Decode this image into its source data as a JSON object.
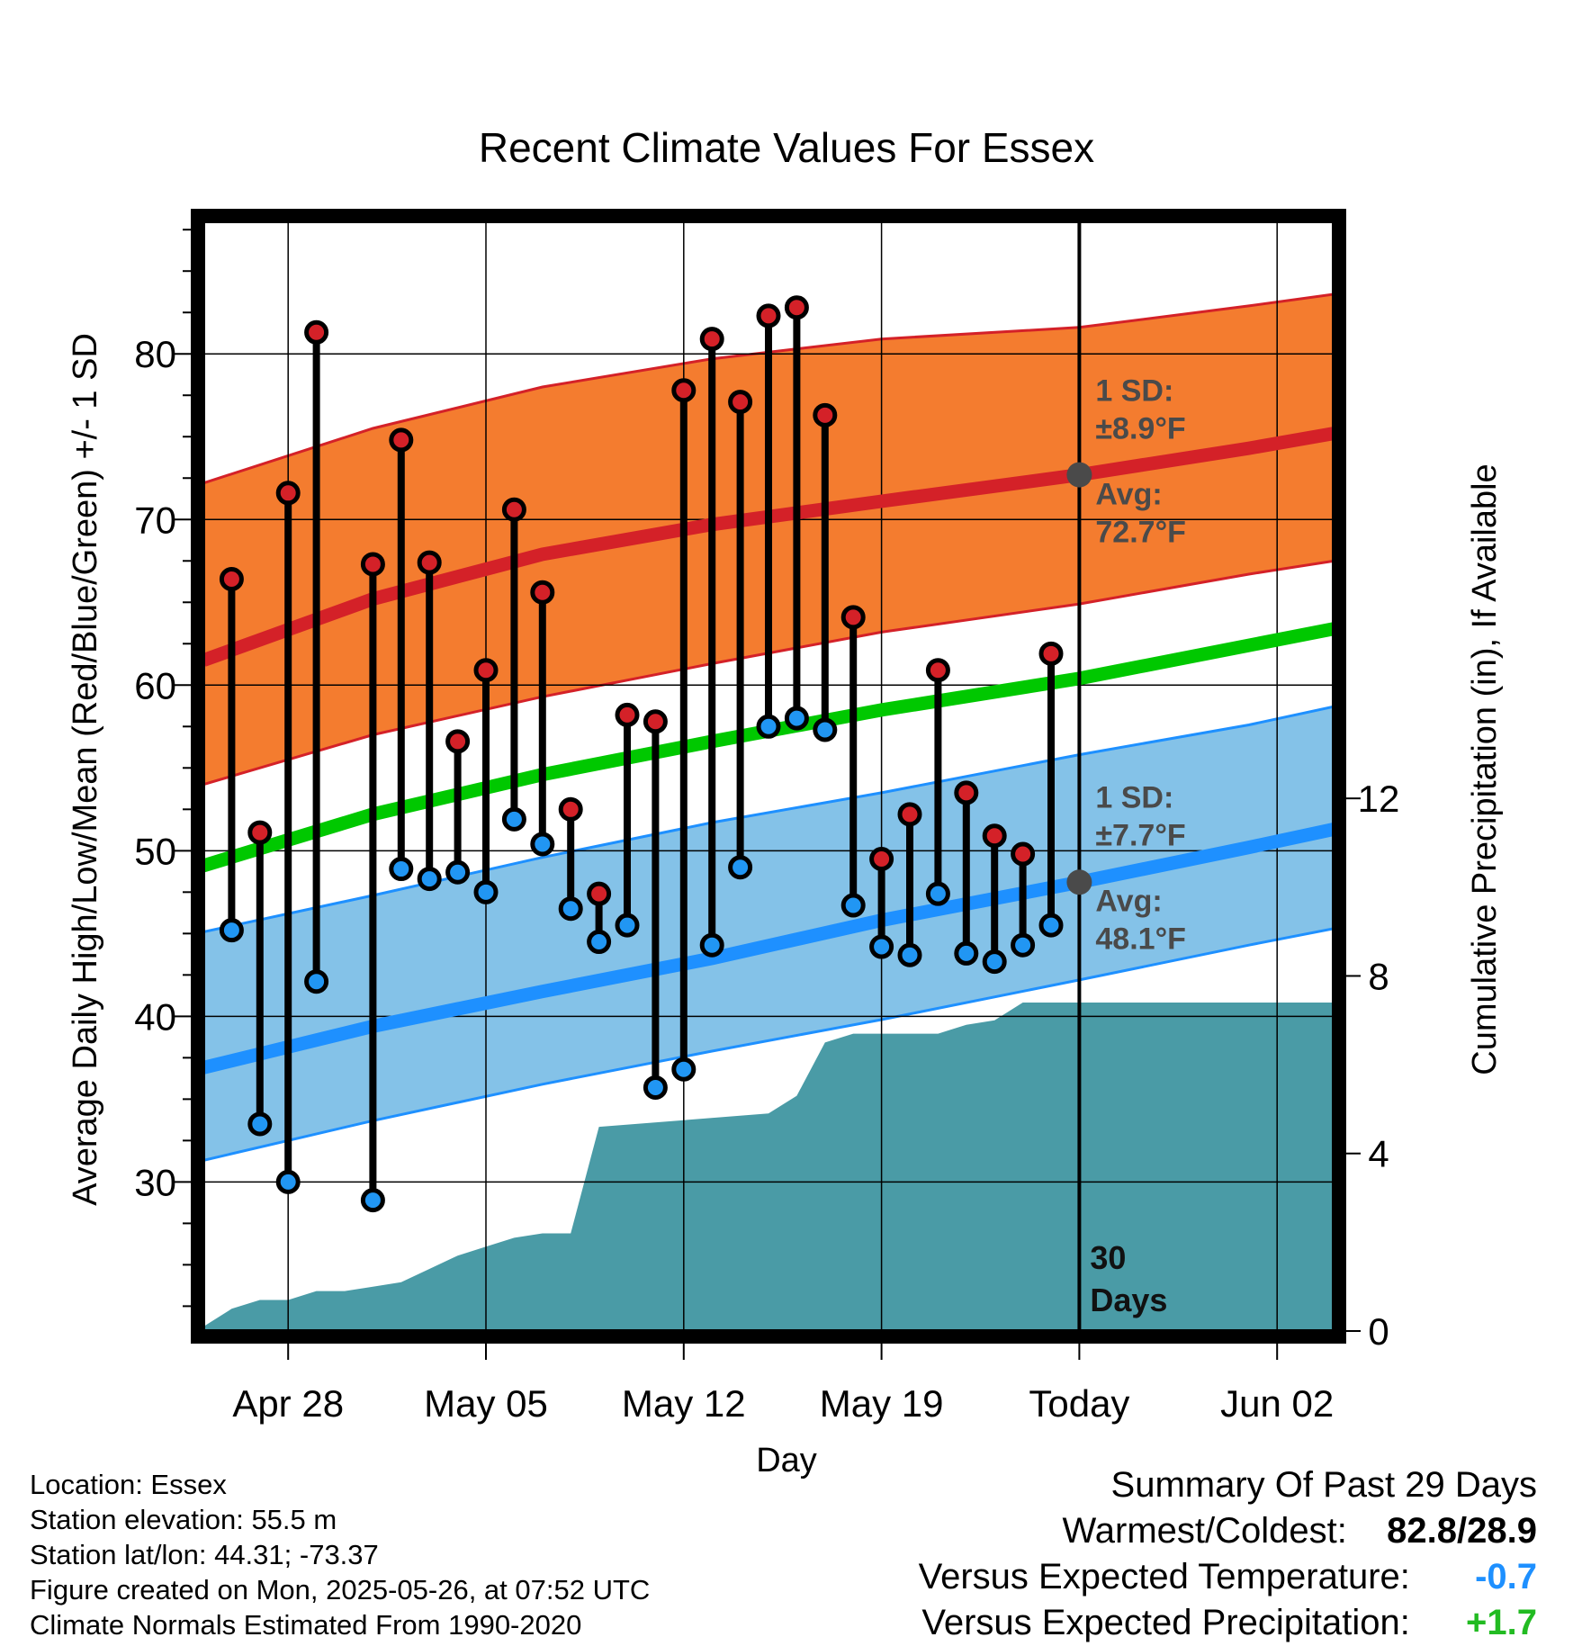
{
  "colors": {
    "high_band": "#f47c2f",
    "high_line": "#d42128",
    "low_band": "#84c2e8",
    "low_line": "#1e90ff",
    "mean_line": "#00c800",
    "precip_fill": "#4a9ba6",
    "high_marker": "#d42128",
    "low_marker": "#2196f3",
    "today_marker": "#4a4a4a",
    "temp_departure": "#1e90ff",
    "precip_departure": "#22bb22"
  },
  "chart_data": {
    "type": "line",
    "title": "Recent Climate Values For Essex",
    "xlabel": "Day",
    "ylabel": "Average Daily High/Low/Mean (Red/Blue/Green) +/- 1 SD",
    "y2label": "Cumulative Precipitation (in), If Available",
    "ylim": [
      21,
      88
    ],
    "y2lim": [
      0,
      25
    ],
    "xlim": [
      "2025-04-25",
      "2025-06-04"
    ],
    "y_ticks": [
      30,
      40,
      50,
      60,
      70,
      80
    ],
    "y_minor_step": 2.5,
    "y2_ticks": [
      0,
      4,
      8,
      12
    ],
    "x_ticks": [
      {
        "date": "2025-04-28",
        "label": "Apr 28"
      },
      {
        "date": "2025-05-05",
        "label": "May 05"
      },
      {
        "date": "2025-05-12",
        "label": "May 12"
      },
      {
        "date": "2025-05-19",
        "label": "May 19"
      },
      {
        "date": "2025-05-26",
        "label": "Today"
      },
      {
        "date": "2025-06-02",
        "label": "Jun 02"
      }
    ],
    "grid": true,
    "today": "2025-05-26",
    "window_label": "30 Days",
    "normals": {
      "x": [
        "2025-04-25",
        "2025-05-01",
        "2025-05-07",
        "2025-05-13",
        "2025-05-19",
        "2025-05-26",
        "2025-06-01",
        "2025-06-04"
      ],
      "high_mean": [
        61.5,
        65.2,
        67.9,
        69.7,
        71.1,
        72.7,
        74.3,
        75.2
      ],
      "high_sd_upper": [
        72.2,
        75.5,
        78.0,
        79.7,
        80.9,
        81.6,
        82.9,
        83.6
      ],
      "high_sd_lower": [
        54.0,
        57.0,
        59.3,
        61.3,
        63.2,
        64.9,
        66.7,
        67.5
      ],
      "low_mean": [
        36.9,
        39.4,
        41.5,
        43.5,
        45.8,
        48.1,
        50.2,
        51.3
      ],
      "low_sd_upper": [
        45.1,
        47.3,
        49.6,
        51.7,
        53.5,
        55.8,
        57.6,
        58.7
      ],
      "low_sd_lower": [
        31.3,
        33.7,
        35.9,
        37.9,
        39.8,
        42.2,
        44.3,
        45.3
      ],
      "mean": [
        49.1,
        52.2,
        54.6,
        56.6,
        58.5,
        60.4,
        62.4,
        63.4
      ]
    },
    "daily": [
      {
        "date": "2025-04-26",
        "high": 66.4,
        "low": 45.2
      },
      {
        "date": "2025-04-27",
        "high": 51.1,
        "low": 33.5
      },
      {
        "date": "2025-04-28",
        "high": 71.6,
        "low": 30.0
      },
      {
        "date": "2025-04-29",
        "high": 81.3,
        "low": 42.1
      },
      {
        "date": "2025-05-01",
        "high": 67.3,
        "low": 28.9
      },
      {
        "date": "2025-05-02",
        "high": 74.8,
        "low": 48.9
      },
      {
        "date": "2025-05-03",
        "high": 67.4,
        "low": 48.3
      },
      {
        "date": "2025-05-04",
        "high": 56.6,
        "low": 48.7
      },
      {
        "date": "2025-05-05",
        "high": 60.9,
        "low": 47.5
      },
      {
        "date": "2025-05-06",
        "high": 70.6,
        "low": 51.9
      },
      {
        "date": "2025-05-07",
        "high": 65.6,
        "low": 50.4
      },
      {
        "date": "2025-05-08",
        "high": 52.5,
        "low": 46.5
      },
      {
        "date": "2025-05-09",
        "high": 47.4,
        "low": 44.5
      },
      {
        "date": "2025-05-10",
        "high": 58.2,
        "low": 45.5
      },
      {
        "date": "2025-05-11",
        "high": 57.8,
        "low": 35.7
      },
      {
        "date": "2025-05-12",
        "high": 77.8,
        "low": 36.8
      },
      {
        "date": "2025-05-13",
        "high": 80.9,
        "low": 44.3
      },
      {
        "date": "2025-05-14",
        "high": 77.1,
        "low": 49.0
      },
      {
        "date": "2025-05-15",
        "high": 82.3,
        "low": 57.5
      },
      {
        "date": "2025-05-16",
        "high": 82.8,
        "low": 58.0
      },
      {
        "date": "2025-05-17",
        "high": 76.3,
        "low": 57.3
      },
      {
        "date": "2025-05-18",
        "high": 64.1,
        "low": 46.7
      },
      {
        "date": "2025-05-19",
        "high": 49.5,
        "low": 44.2
      },
      {
        "date": "2025-05-20",
        "high": 52.2,
        "low": 43.7
      },
      {
        "date": "2025-05-21",
        "high": 60.9,
        "low": 47.4
      },
      {
        "date": "2025-05-22",
        "high": 53.5,
        "low": 43.8
      },
      {
        "date": "2025-05-23",
        "high": 50.9,
        "low": 43.3
      },
      {
        "date": "2025-05-24",
        "high": 49.8,
        "low": 44.3
      },
      {
        "date": "2025-05-25",
        "high": 61.9,
        "low": 45.5
      }
    ],
    "precip_cumulative": {
      "x": [
        "2025-04-25",
        "2025-04-26",
        "2025-04-27",
        "2025-04-28",
        "2025-04-29",
        "2025-04-30",
        "2025-05-01",
        "2025-05-02",
        "2025-05-03",
        "2025-05-04",
        "2025-05-05",
        "2025-05-06",
        "2025-05-07",
        "2025-05-08",
        "2025-05-09",
        "2025-05-15",
        "2025-05-16",
        "2025-05-17",
        "2025-05-18",
        "2025-05-21",
        "2025-05-22",
        "2025-05-23",
        "2025-05-24",
        "2025-06-04"
      ],
      "values": [
        0.1,
        0.5,
        0.7,
        0.7,
        0.9,
        0.9,
        1.0,
        1.1,
        1.4,
        1.7,
        1.9,
        2.1,
        2.2,
        2.2,
        4.6,
        4.9,
        5.3,
        6.5,
        6.7,
        6.7,
        6.9,
        7.0,
        7.4,
        7.4
      ]
    },
    "annotations": {
      "high_sd_title": "1 SD:",
      "high_sd_value": "±8.9°F",
      "high_avg_title": "Avg:",
      "high_avg_value": "72.7°F",
      "low_sd_title": "1 SD:",
      "low_sd_value": "±7.7°F",
      "low_avg_title": "Avg:",
      "low_avg_value": "48.1°F",
      "high_avg": 72.7,
      "low_avg": 48.1
    }
  },
  "station_info": {
    "location": "Location: Essex",
    "elevation": "Station elevation: 55.5 m",
    "latlon": "Station lat/lon: 44.31; -73.37",
    "created": "Figure created on Mon, 2025-05-26, at 07:52 UTC",
    "normals": "Climate Normals Estimated From 1990-2020"
  },
  "summary": {
    "heading": "Summary Of Past 29 Days",
    "warmest_label": "Warmest/Coldest:",
    "warmest_value": "82.8/28.9",
    "temp_label": "Versus Expected Temperature:",
    "temp_value": "-0.7",
    "precip_label": "Versus Expected Precipitation:",
    "precip_value": "+1.7"
  }
}
